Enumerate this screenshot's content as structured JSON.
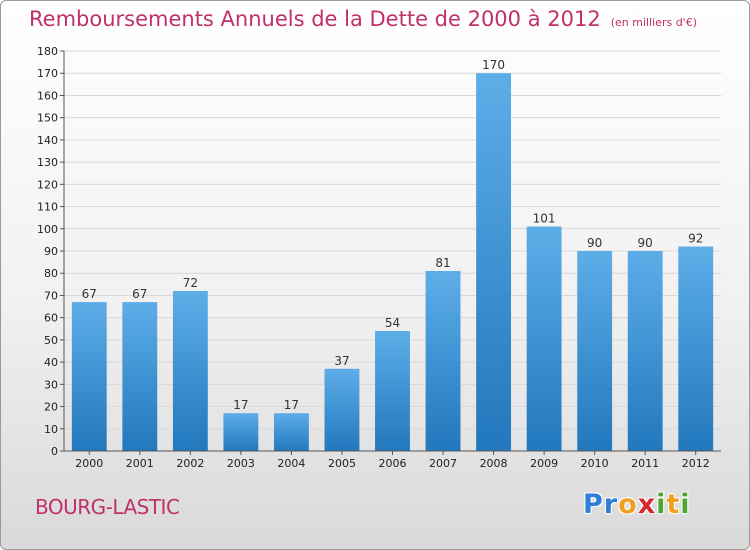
{
  "title": "Remboursements Annuels de la Dette de 2000 à 2012",
  "unit_note": "(en milliers d'€)",
  "commune": "BOURG-LASTIC",
  "logo": {
    "letters": [
      {
        "char": "P",
        "color": "#2e7fd6"
      },
      {
        "char": "r",
        "color": "#2e7fd6"
      },
      {
        "char": "o",
        "color": "#f0a020"
      },
      {
        "char": "x",
        "color": "#d6282e"
      },
      {
        "char": "i",
        "color": "#4aa832"
      },
      {
        "char": "t",
        "color": "#f0a020"
      },
      {
        "char": "i",
        "color": "#4aa832"
      }
    ]
  },
  "colors": {
    "title": "#c0306a",
    "bar_top": "#5dade8",
    "bar_bottom": "#2278bd",
    "grid": "#d8d8d8",
    "axis": "#555555"
  },
  "chart_data": {
    "type": "bar",
    "categories": [
      "2000",
      "2001",
      "2002",
      "2003",
      "2004",
      "2005",
      "2006",
      "2007",
      "2008",
      "2009",
      "2010",
      "2011",
      "2012"
    ],
    "values": [
      67,
      67,
      72,
      17,
      17,
      37,
      54,
      81,
      170,
      101,
      90,
      90,
      92
    ],
    "title": "Remboursements Annuels de la Dette de 2000 à 2012",
    "subtitle": "(en milliers d'€)",
    "xlabel": "",
    "ylabel": "",
    "ylim": [
      0,
      180
    ],
    "ytick_step": 10,
    "grid": true,
    "legend": "none"
  }
}
